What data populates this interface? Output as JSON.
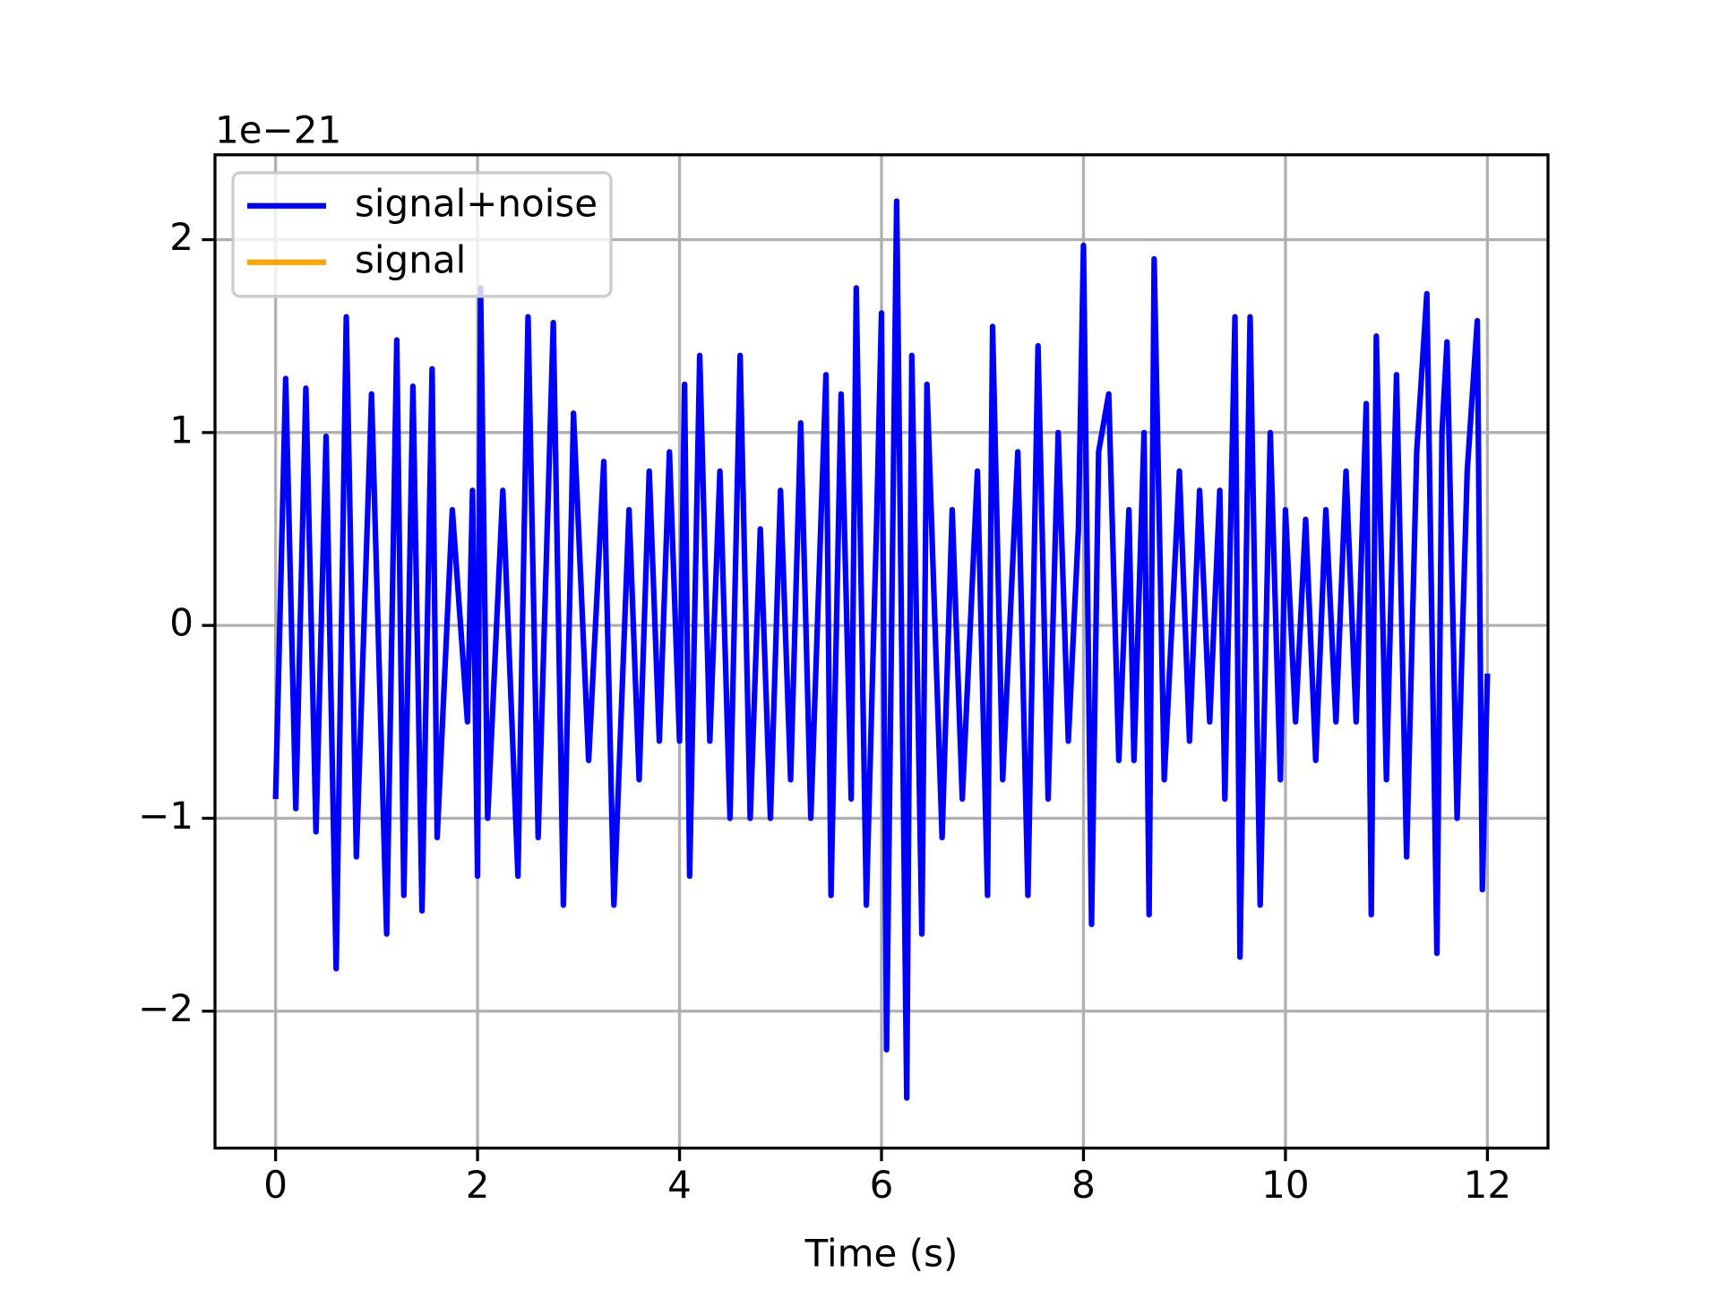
{
  "chart_data": {
    "type": "line",
    "x_label": "Time (s)",
    "y_offset_label": "1e−21",
    "x": [
      0,
      0.1,
      0.2,
      0.3,
      0.4,
      0.5,
      0.6,
      0.7,
      0.8,
      0.95,
      1.1,
      1.2,
      1.27,
      1.36,
      1.45,
      1.55,
      1.6,
      1.75,
      1.9,
      1.95,
      2.0,
      2.03,
      2.1,
      2.25,
      2.4,
      2.5,
      2.6,
      2.75,
      2.85,
      2.95,
      3.1,
      3.25,
      3.35,
      3.5,
      3.6,
      3.7,
      3.8,
      3.9,
      4.0,
      4.05,
      4.1,
      4.2,
      4.3,
      4.4,
      4.5,
      4.6,
      4.7,
      4.8,
      4.9,
      5.0,
      5.1,
      5.2,
      5.3,
      5.45,
      5.5,
      5.6,
      5.7,
      5.75,
      5.85,
      5.95,
      6.0,
      6.05,
      6.15,
      6.25,
      6.3,
      6.4,
      6.45,
      6.6,
      6.7,
      6.8,
      6.95,
      7.05,
      7.1,
      7.2,
      7.35,
      7.45,
      7.55,
      7.65,
      7.75,
      7.85,
      7.95,
      8.0,
      8.08,
      8.15,
      8.25,
      8.35,
      8.45,
      8.5,
      8.6,
      8.65,
      8.7,
      8.8,
      8.95,
      9.05,
      9.15,
      9.25,
      9.35,
      9.4,
      9.5,
      9.55,
      9.65,
      9.75,
      9.85,
      9.95,
      10.0,
      10.1,
      10.2,
      10.3,
      10.4,
      10.5,
      10.6,
      10.7,
      10.8,
      10.85,
      10.9,
      11.0,
      11.1,
      11.2,
      11.3,
      11.4,
      11.5,
      11.55,
      11.6,
      11.7,
      11.8,
      11.9,
      11.95,
      12.0
    ],
    "series": [
      {
        "name": "signal+noise",
        "color": "#0000ff",
        "values": [
          -0.9,
          1.28,
          -0.95,
          1.23,
          -1.07,
          0.98,
          -1.78,
          1.6,
          -1.2,
          1.2,
          -1.6,
          1.48,
          -1.4,
          1.24,
          -1.48,
          1.33,
          -1.1,
          0.6,
          -0.5,
          0.7,
          -1.3,
          1.75,
          -1.0,
          0.7,
          -1.3,
          1.6,
          -1.1,
          1.57,
          -1.45,
          1.1,
          -0.7,
          0.85,
          -1.45,
          0.6,
          -0.8,
          0.8,
          -0.6,
          0.9,
          -0.6,
          1.25,
          -1.3,
          1.4,
          -0.6,
          0.8,
          -1.0,
          1.4,
          -1.0,
          0.5,
          -1.0,
          0.7,
          -0.8,
          1.05,
          -1.0,
          1.3,
          -1.4,
          1.2,
          -0.9,
          1.75,
          -1.45,
          0.5,
          1.62,
          -2.2,
          2.2,
          -2.45,
          1.4,
          -1.6,
          1.25,
          -1.1,
          0.6,
          -0.9,
          0.8,
          -1.4,
          1.55,
          -0.8,
          0.9,
          -1.4,
          1.45,
          -0.9,
          1.0,
          -0.6,
          0.5,
          1.97,
          -1.55,
          0.9,
          1.2,
          -0.7,
          0.6,
          -0.7,
          1.0,
          -1.5,
          1.9,
          -0.8,
          0.8,
          -0.6,
          0.7,
          -0.5,
          0.7,
          -0.9,
          1.6,
          -1.72,
          1.6,
          -1.45,
          1.0,
          -0.8,
          0.6,
          -0.5,
          0.55,
          -0.7,
          0.6,
          -0.5,
          0.8,
          -0.5,
          1.15,
          -1.5,
          1.5,
          -0.8,
          1.3,
          -1.2,
          0.9,
          1.72,
          -1.7,
          1.0,
          1.47,
          -1.0,
          0.8,
          1.58,
          -1.37,
          -0.25
        ]
      },
      {
        "name": "signal",
        "color": "#ffa500",
        "values": [
          null,
          null,
          null,
          null,
          null,
          null,
          null,
          null,
          null,
          null,
          null,
          null,
          null,
          null,
          null,
          null,
          null,
          null,
          null,
          null,
          null,
          null,
          null,
          null,
          null,
          null,
          null,
          null,
          null,
          null,
          null,
          null,
          null,
          null,
          null,
          null,
          null,
          null,
          null,
          null,
          null,
          null,
          null,
          null,
          null,
          null,
          null,
          null,
          null,
          null,
          null,
          null,
          null,
          null,
          null,
          null,
          null,
          null,
          null,
          null,
          null,
          null,
          null,
          null,
          null,
          null,
          null,
          null,
          null,
          null,
          null,
          null,
          null,
          null,
          null,
          null,
          null,
          null,
          null,
          null,
          null,
          null,
          null,
          null,
          null,
          null,
          null,
          null,
          null,
          null,
          null,
          null,
          null,
          null,
          null,
          null,
          null,
          null,
          null,
          null,
          null,
          null,
          null,
          null,
          null,
          null,
          null,
          null,
          null,
          null,
          null,
          null,
          null,
          null,
          null,
          null,
          null,
          null,
          null,
          null,
          null,
          null,
          null,
          null,
          null,
          null,
          null,
          null
        ]
      }
    ],
    "xlim": [
      -0.6,
      12.6
    ],
    "xticks": [
      0,
      2,
      4,
      6,
      8,
      10,
      12
    ],
    "ylim": [
      -2.71,
      2.44
    ],
    "yticks": [
      {
        "value": -2,
        "label": "−2"
      },
      {
        "value": -1,
        "label": "−1"
      },
      0,
      1,
      2
    ],
    "grid": true,
    "legend": "upper left"
  }
}
